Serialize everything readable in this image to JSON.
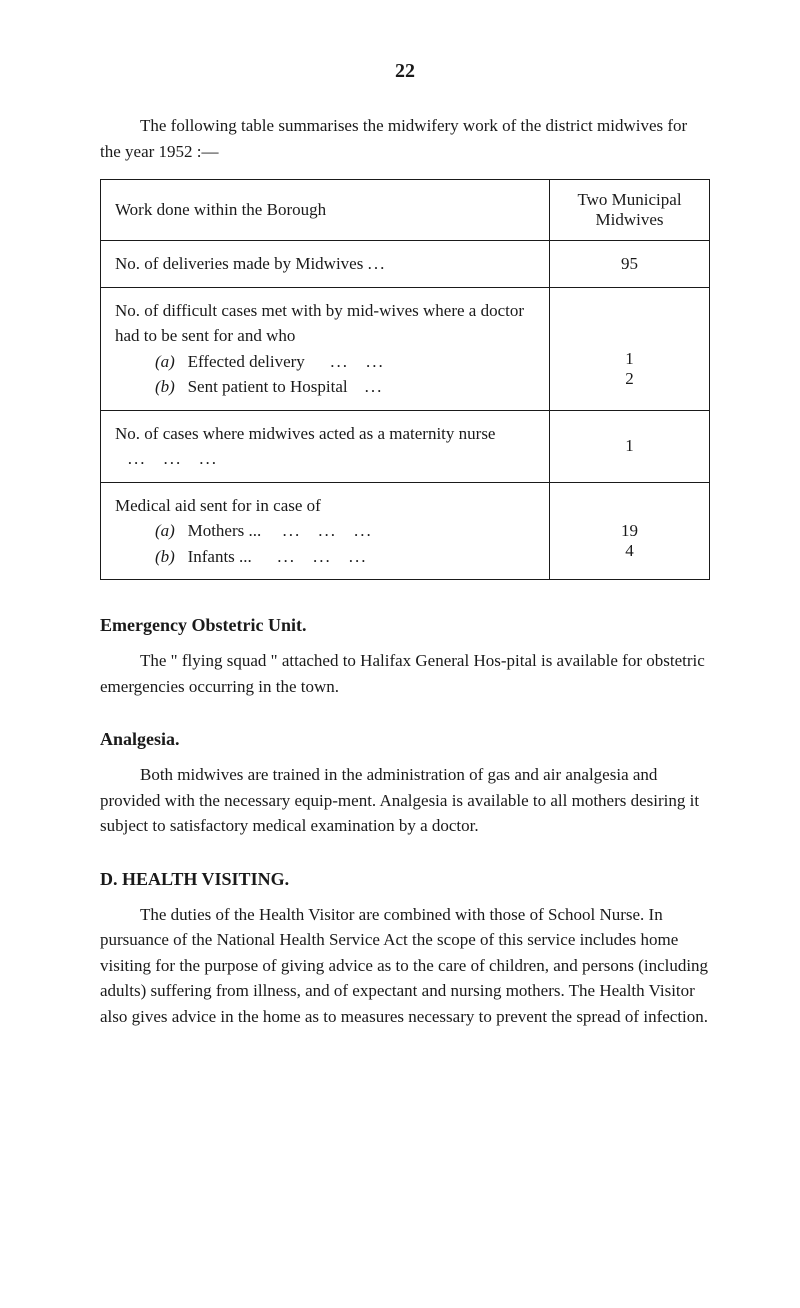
{
  "pageNumber": "22",
  "intro": "The following table summarises the midwifery work of the district midwives for the year 1952 :—",
  "table": {
    "headerLeft": "Work done within the Borough",
    "headerRight": "Two Municipal Midwives",
    "rows": [
      {
        "label": "No. of deliveries made by Midwives",
        "value": "95",
        "subitems": []
      },
      {
        "label": "No. of difficult cases met with by mid-wives where a doctor had to be sent for and who",
        "value": "",
        "subitems": [
          {
            "key": "(a)",
            "text": "Effected delivery",
            "value": "1"
          },
          {
            "key": "(b)",
            "text": "Sent patient to Hospital",
            "value": "2"
          }
        ]
      },
      {
        "label": "No. of cases where midwives acted as a maternity nurse",
        "value": "1",
        "subitems": []
      },
      {
        "label": "Medical aid sent for in case of",
        "value": "",
        "subitems": [
          {
            "key": "(a)",
            "text": "Mothers ...",
            "value": "19"
          },
          {
            "key": "(b)",
            "text": "Infants ...",
            "value": "4"
          }
        ]
      }
    ]
  },
  "sections": [
    {
      "heading": "Emergency Obstetric Unit.",
      "text": "The \" flying squad \" attached to Halifax General Hos-pital is available for obstetric emergencies occurring in the town."
    },
    {
      "heading": "Analgesia.",
      "text": "Both midwives are trained in the administration of gas and air analgesia and provided with the necessary equip-ment. Analgesia is available to all mothers desiring it subject to satisfactory medical examination by a doctor."
    },
    {
      "heading": "D. HEALTH VISITING.",
      "text": "The duties of the Health Visitor are combined with those of School Nurse. In pursuance of the National Health Service Act the scope of this service includes home visiting for the purpose of giving advice as to the care of children, and persons (including adults) suffering from illness, and of expectant and nursing mothers. The Health Visitor also gives advice in the home as to measures necessary to prevent the spread of infection."
    }
  ]
}
